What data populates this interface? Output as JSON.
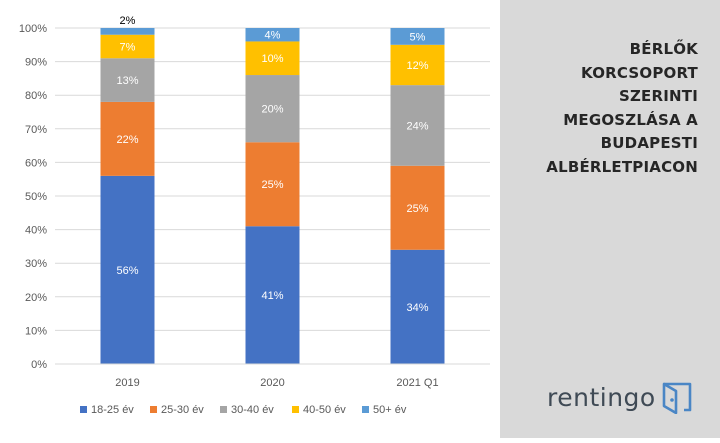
{
  "side_panel": {
    "title": "BÉRLŐK KORCSOPORT SZERINTI MEGOSZLÁSA A BUDAPESTI ALBÉRLETPIACON",
    "logo_text": "rentingo",
    "background": "#d9d9d9"
  },
  "chart_data": {
    "type": "bar",
    "stacked": true,
    "categories": [
      "2019",
      "2020",
      "2021 Q1"
    ],
    "series": [
      {
        "name": "18-25 év",
        "color": "#4472c4",
        "values": [
          56,
          41,
          34
        ],
        "labels": [
          "56%",
          "41%",
          "34%"
        ]
      },
      {
        "name": "25-30 év",
        "color": "#ed7d31",
        "values": [
          22,
          25,
          25
        ],
        "labels": [
          "22%",
          "25%",
          "25%"
        ]
      },
      {
        "name": "30-40 év",
        "color": "#a5a5a5",
        "values": [
          13,
          20,
          24
        ],
        "labels": [
          "13%",
          "20%",
          "24%"
        ]
      },
      {
        "name": "40-50 év",
        "color": "#ffc000",
        "values": [
          7,
          10,
          12
        ],
        "labels": [
          "7%",
          "10%",
          "12%"
        ]
      },
      {
        "name": "50+ év",
        "color": "#5b9bd5",
        "values": [
          2,
          4,
          5
        ],
        "labels": [
          "2%",
          "4%",
          "5%"
        ]
      }
    ],
    "yticks": [
      "0%",
      "10%",
      "20%",
      "30%",
      "40%",
      "50%",
      "60%",
      "70%",
      "80%",
      "90%",
      "100%"
    ],
    "ylim": [
      0,
      100
    ],
    "grid": true,
    "legend": "bottom"
  }
}
